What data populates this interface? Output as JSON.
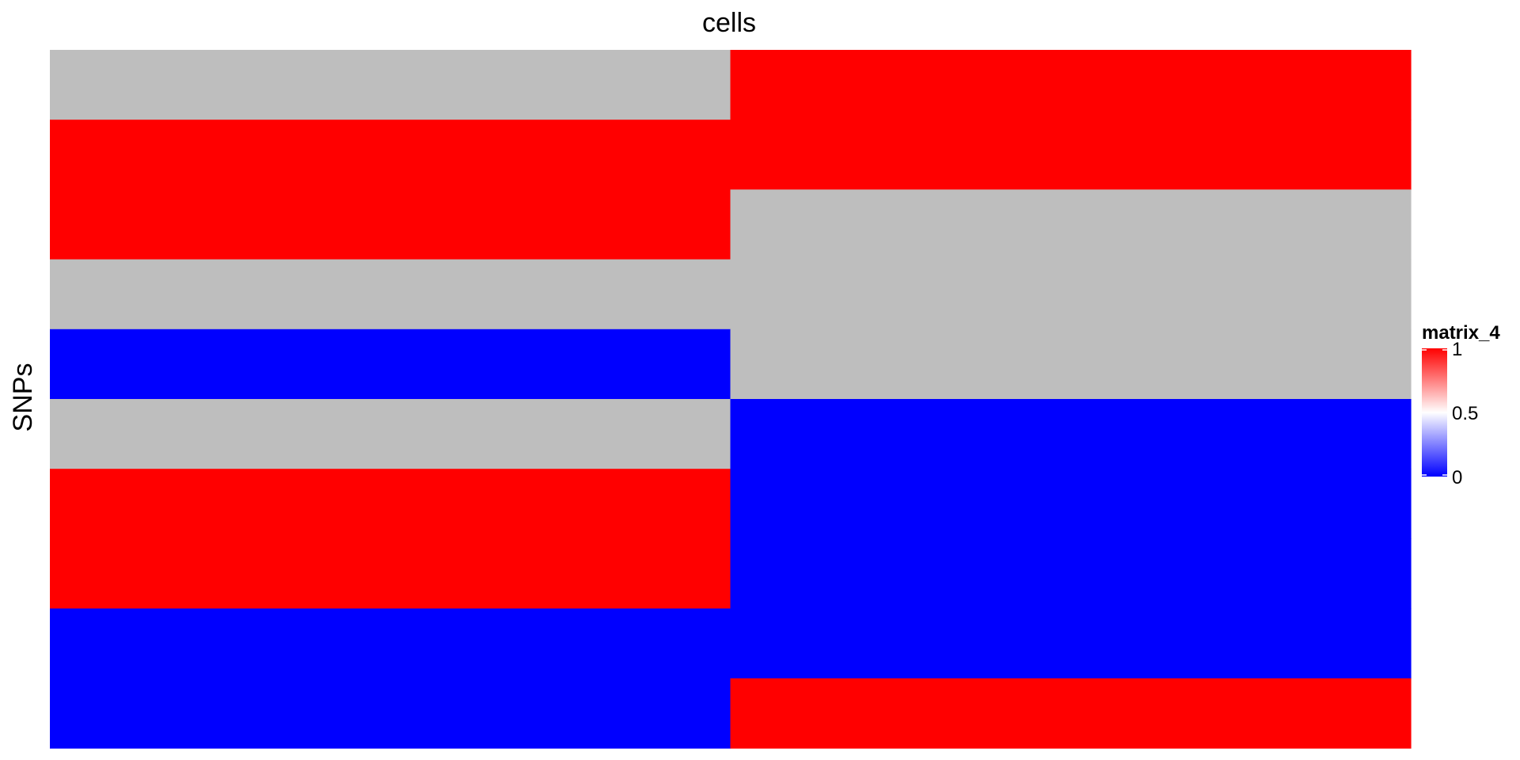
{
  "chart_data": {
    "type": "heatmap",
    "title": "cells",
    "ylabel": "SNPs",
    "columns": 2,
    "rows": 10,
    "na_color": "#BEBEBE",
    "values": [
      [
        null,
        1
      ],
      [
        1,
        1
      ],
      [
        1,
        null
      ],
      [
        null,
        null
      ],
      [
        0,
        null
      ],
      [
        null,
        0
      ],
      [
        1,
        0
      ],
      [
        1,
        0
      ],
      [
        0,
        0
      ],
      [
        0,
        1
      ]
    ],
    "legend": {
      "title": "matrix_4",
      "ticks": [
        "1",
        "0.5",
        "0"
      ],
      "tick_values": [
        1,
        0.5,
        0
      ],
      "colors": {
        "low": "#0000FF",
        "mid": "#FFFFFF",
        "high": "#FF0000"
      }
    }
  }
}
